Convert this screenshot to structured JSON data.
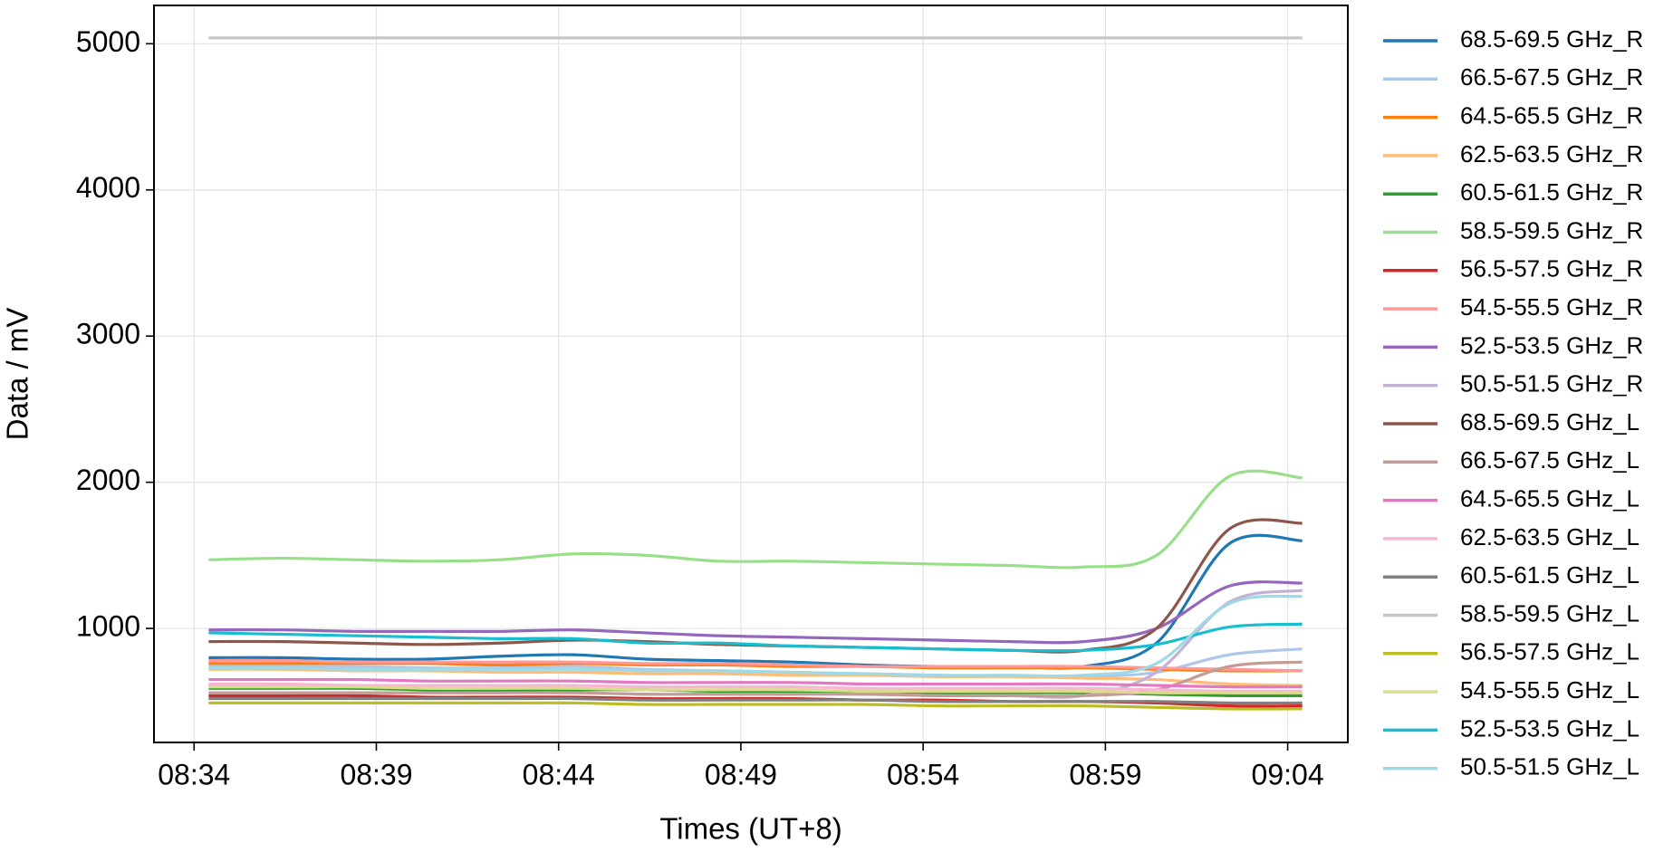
{
  "chart_data": {
    "type": "line",
    "xlabel": "Times (UT+8)",
    "ylabel": "Data / mV",
    "x": [
      514.4,
      516.4,
      518.4,
      520.4,
      522.4,
      524.4,
      526.4,
      528.4,
      530.4,
      532.4,
      534.4,
      536.4,
      538.4,
      540.4,
      542.4,
      544.4
    ],
    "xlim": [
      512.9,
      545.65
    ],
    "xticks": [
      {
        "value": 514,
        "label": "08:34"
      },
      {
        "value": 519,
        "label": "08:39"
      },
      {
        "value": 524,
        "label": "08:44"
      },
      {
        "value": 529,
        "label": "08:49"
      },
      {
        "value": 534,
        "label": "08:54"
      },
      {
        "value": 539,
        "label": "08:59"
      },
      {
        "value": 544,
        "label": "09:04"
      }
    ],
    "ylim": [
      220,
      5262
    ],
    "yticks": [
      1000,
      2000,
      3000,
      4000,
      5000
    ],
    "grid": true,
    "legend": "outside-right",
    "series": [
      {
        "name": "68.5-69.5 GHz_R",
        "color": "#1f77b4",
        "values": [
          800,
          800,
          790,
          790,
          810,
          820,
          790,
          780,
          770,
          750,
          740,
          740,
          740,
          900,
          1580,
          1600
        ]
      },
      {
        "name": "66.5-67.5 GHz_R",
        "color": "#aec7e8",
        "values": [
          740,
          740,
          740,
          730,
          730,
          740,
          720,
          710,
          700,
          690,
          680,
          670,
          670,
          700,
          820,
          860
        ]
      },
      {
        "name": "64.5-65.5 GHz_R",
        "color": "#ff7f0e",
        "values": [
          760,
          760,
          760,
          760,
          750,
          760,
          750,
          750,
          740,
          740,
          730,
          730,
          730,
          720,
          710,
          710
        ]
      },
      {
        "name": "62.5-63.5 GHz_R",
        "color": "#ffbb78",
        "values": [
          720,
          720,
          710,
          710,
          700,
          700,
          690,
          690,
          680,
          680,
          670,
          670,
          660,
          650,
          620,
          610
        ]
      },
      {
        "name": "60.5-61.5 GHz_R",
        "color": "#2ca02c",
        "values": [
          590,
          590,
          590,
          580,
          580,
          580,
          580,
          570,
          570,
          570,
          560,
          560,
          560,
          550,
          540,
          540
        ]
      },
      {
        "name": "58.5-59.5 GHz_R",
        "color": "#98df8a",
        "values": [
          1470,
          1480,
          1470,
          1460,
          1470,
          1510,
          1500,
          1460,
          1460,
          1450,
          1440,
          1430,
          1420,
          1500,
          2040,
          2030
        ]
      },
      {
        "name": "56.5-57.5 GHz_R",
        "color": "#d62728",
        "values": [
          540,
          540,
          540,
          530,
          530,
          530,
          520,
          520,
          520,
          510,
          510,
          500,
          500,
          490,
          470,
          470
        ]
      },
      {
        "name": "54.5-55.5 GHz_R",
        "color": "#ff9896",
        "values": [
          780,
          780,
          770,
          770,
          770,
          770,
          760,
          760,
          750,
          740,
          740,
          740,
          740,
          730,
          720,
          710
        ]
      },
      {
        "name": "52.5-53.5 GHz_R",
        "color": "#9467bd",
        "values": [
          990,
          990,
          980,
          980,
          980,
          990,
          970,
          950,
          940,
          930,
          920,
          910,
          910,
          1000,
          1290,
          1310
        ]
      },
      {
        "name": "50.5-51.5 GHz_R",
        "color": "#c5b0d5",
        "values": [
          560,
          560,
          560,
          560,
          560,
          560,
          550,
          550,
          550,
          550,
          540,
          540,
          540,
          700,
          1180,
          1260
        ]
      },
      {
        "name": "68.5-69.5 GHz_L",
        "color": "#8c564b",
        "values": [
          910,
          910,
          900,
          890,
          900,
          920,
          910,
          890,
          880,
          870,
          860,
          850,
          850,
          1000,
          1680,
          1720
        ]
      },
      {
        "name": "66.5-67.5 GHz_L",
        "color": "#c49c94",
        "values": [
          560,
          560,
          560,
          560,
          560,
          560,
          550,
          550,
          550,
          550,
          540,
          540,
          540,
          580,
          740,
          770
        ]
      },
      {
        "name": "64.5-65.5 GHz_L",
        "color": "#e377c2",
        "values": [
          650,
          650,
          650,
          640,
          640,
          640,
          630,
          630,
          630,
          620,
          620,
          620,
          620,
          610,
          600,
          600
        ]
      },
      {
        "name": "62.5-63.5 GHz_L",
        "color": "#f7b6d2",
        "values": [
          620,
          620,
          610,
          610,
          610,
          610,
          600,
          600,
          600,
          590,
          590,
          590,
          590,
          580,
          570,
          570
        ]
      },
      {
        "name": "60.5-61.5 GHz_L",
        "color": "#7f7f7f",
        "values": [
          520,
          520,
          520,
          520,
          520,
          520,
          510,
          510,
          510,
          510,
          500,
          500,
          500,
          500,
          490,
          490
        ]
      },
      {
        "name": "58.5-59.5 GHz_L",
        "color": "#c7c7c7",
        "values": [
          5040,
          5040,
          5040,
          5040,
          5040,
          5040,
          5040,
          5040,
          5040,
          5040,
          5040,
          5040,
          5040,
          5040,
          5040,
          5040
        ]
      },
      {
        "name": "56.5-57.5 GHz_L",
        "color": "#bcbd22",
        "values": [
          490,
          490,
          490,
          490,
          490,
          490,
          480,
          480,
          480,
          480,
          470,
          470,
          470,
          460,
          450,
          450
        ]
      },
      {
        "name": "54.5-55.5 GHz_L",
        "color": "#dbdb8d",
        "values": [
          600,
          600,
          600,
          590,
          590,
          590,
          580,
          580,
          580,
          570,
          570,
          570,
          570,
          560,
          560,
          560
        ]
      },
      {
        "name": "52.5-53.5 GHz_L",
        "color": "#17becf",
        "values": [
          970,
          960,
          950,
          940,
          930,
          930,
          900,
          900,
          880,
          870,
          860,
          850,
          850,
          890,
          1010,
          1030
        ]
      },
      {
        "name": "50.5-51.5 GHz_L",
        "color": "#9edae5",
        "values": [
          730,
          730,
          720,
          720,
          720,
          720,
          710,
          710,
          700,
          690,
          680,
          680,
          680,
          760,
          1170,
          1220
        ]
      }
    ]
  }
}
